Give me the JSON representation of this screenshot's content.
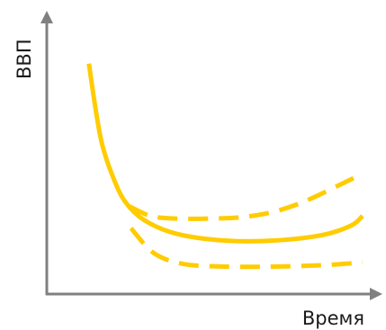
{
  "chart_data": {
    "type": "line",
    "title": "",
    "xlabel": "Время",
    "ylabel": "ВВП",
    "xlim": [
      0,
      10
    ],
    "ylim": [
      0,
      10
    ],
    "grid": false,
    "legend": "none",
    "ticks": "none",
    "series": [
      {
        "style": "solid",
        "color": "#ffcc00",
        "points": [
          [
            1.3,
            8.4
          ],
          [
            1.5,
            6.8
          ],
          [
            1.7,
            5.5
          ],
          [
            2.0,
            4.4
          ],
          [
            2.4,
            3.4
          ],
          [
            3.0,
            2.7
          ],
          [
            4.0,
            2.2
          ],
          [
            5.5,
            1.95
          ],
          [
            7.0,
            1.95
          ],
          [
            8.5,
            2.15
          ],
          [
            9.4,
            2.5
          ],
          [
            9.75,
            2.85
          ]
        ]
      },
      {
        "style": "dashed",
        "color": "#ffcc00",
        "points": [
          [
            2.55,
            3.2
          ],
          [
            3.2,
            2.85
          ],
          [
            4.0,
            2.75
          ],
          [
            5.0,
            2.75
          ],
          [
            6.0,
            2.8
          ],
          [
            7.0,
            3.0
          ],
          [
            8.0,
            3.4
          ],
          [
            9.6,
            4.3
          ]
        ]
      },
      {
        "style": "dashed",
        "color": "#ffcc00",
        "points": [
          [
            2.6,
            2.4
          ],
          [
            3.3,
            1.5
          ],
          [
            4.2,
            1.1
          ],
          [
            5.5,
            1.0
          ],
          [
            7.0,
            1.0
          ],
          [
            8.5,
            1.05
          ],
          [
            9.75,
            1.15
          ]
        ]
      }
    ]
  },
  "colors": {
    "axis": "#808080",
    "curve": "#ffcc00",
    "text": "#1a1a1a"
  }
}
